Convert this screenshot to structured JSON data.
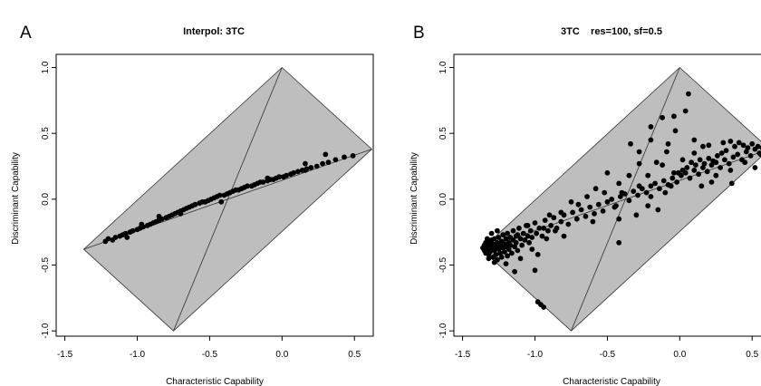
{
  "chart_data": [
    {
      "type": "scatter",
      "panel_label": "A",
      "title": "Interpol: 3TC",
      "xlabel": "Characteristic Capability",
      "ylabel": "Discriminant Capability",
      "xlim": [
        -1.56,
        0.63
      ],
      "ylim": [
        -1.04,
        1.1
      ],
      "xticks": [
        -1.5,
        -1.0,
        -0.5,
        0.0,
        0.5
      ],
      "xtick_labels": [
        "-1.5",
        "-1.0",
        "-0.5",
        "0.0",
        "0.5"
      ],
      "yticks": [
        -1.0,
        -0.5,
        0.0,
        0.5,
        1.0
      ],
      "ytick_labels": [
        "-1.0",
        "-0.5",
        "0.0",
        "0.5",
        "1.0"
      ],
      "grid": false,
      "region_polygon": [
        [
          0.0,
          1.0
        ],
        [
          0.62,
          0.38
        ],
        [
          -0.75,
          -1.0
        ],
        [
          -1.37,
          -0.38
        ]
      ],
      "region_diagonals": [
        [
          [
            0.0,
            1.0
          ],
          [
            -0.75,
            -1.0
          ]
        ],
        [
          [
            -1.37,
            -0.38
          ],
          [
            0.62,
            0.38
          ]
        ]
      ],
      "colors": {
        "region": "#bebebe",
        "points": "#000000"
      },
      "points": [
        [
          -1.22,
          -0.32
        ],
        [
          -1.2,
          -0.3
        ],
        [
          -1.17,
          -0.31
        ],
        [
          -1.15,
          -0.29
        ],
        [
          -1.12,
          -0.28
        ],
        [
          -1.1,
          -0.27
        ],
        [
          -1.08,
          -0.26
        ],
        [
          -1.05,
          -0.25
        ],
        [
          -1.03,
          -0.24
        ],
        [
          -1.0,
          -0.23
        ],
        [
          -0.98,
          -0.22
        ],
        [
          -0.96,
          -0.21
        ],
        [
          -0.93,
          -0.2
        ],
        [
          -0.91,
          -0.19
        ],
        [
          -0.89,
          -0.18
        ],
        [
          -0.87,
          -0.17
        ],
        [
          -0.85,
          -0.16
        ],
        [
          -0.83,
          -0.15
        ],
        [
          -0.8,
          -0.14
        ],
        [
          -0.78,
          -0.13
        ],
        [
          -0.76,
          -0.12
        ],
        [
          -0.74,
          -0.11
        ],
        [
          -0.72,
          -0.1
        ],
        [
          -0.7,
          -0.09
        ],
        [
          -0.68,
          -0.08
        ],
        [
          -0.66,
          -0.07
        ],
        [
          -0.64,
          -0.06
        ],
        [
          -0.62,
          -0.05
        ],
        [
          -0.6,
          -0.04
        ],
        [
          -0.57,
          -0.03
        ],
        [
          -0.55,
          -0.02
        ],
        [
          -0.53,
          -0.02
        ],
        [
          -0.51,
          -0.01
        ],
        [
          -0.49,
          0.0
        ],
        [
          -0.47,
          0.01
        ],
        [
          -0.45,
          0.02
        ],
        [
          -0.43,
          0.03
        ],
        [
          -0.4,
          0.03
        ],
        [
          -0.38,
          0.04
        ],
        [
          -0.36,
          0.05
        ],
        [
          -0.34,
          0.06
        ],
        [
          -0.32,
          0.07
        ],
        [
          -0.3,
          0.07
        ],
        [
          -0.28,
          0.08
        ],
        [
          -0.26,
          0.09
        ],
        [
          -0.24,
          0.1
        ],
        [
          -0.21,
          0.1
        ],
        [
          -0.19,
          0.11
        ],
        [
          -0.17,
          0.12
        ],
        [
          -0.15,
          0.13
        ],
        [
          -0.13,
          0.13
        ],
        [
          -0.1,
          0.14
        ],
        [
          -0.08,
          0.15
        ],
        [
          -0.06,
          0.15
        ],
        [
          -0.04,
          0.16
        ],
        [
          -0.02,
          0.17
        ],
        [
          0.01,
          0.17
        ],
        [
          0.03,
          0.18
        ],
        [
          0.06,
          0.19
        ],
        [
          0.08,
          0.2
        ],
        [
          0.11,
          0.21
        ],
        [
          0.14,
          0.22
        ],
        [
          0.17,
          0.23
        ],
        [
          0.2,
          0.24
        ],
        [
          0.24,
          0.25
        ],
        [
          0.28,
          0.27
        ],
        [
          0.32,
          0.28
        ],
        [
          0.37,
          0.3
        ],
        [
          0.43,
          0.32
        ],
        [
          0.49,
          0.33
        ],
        [
          0.16,
          0.22
        ],
        [
          -0.1,
          0.16
        ],
        [
          0.3,
          0.34
        ],
        [
          0.16,
          0.27
        ],
        [
          -0.42,
          -0.02
        ],
        [
          -0.7,
          -0.11
        ],
        [
          -0.97,
          -0.19
        ],
        [
          -1.07,
          -0.29
        ],
        [
          -0.85,
          -0.13
        ]
      ]
    },
    {
      "type": "scatter",
      "panel_label": "B",
      "title": "3TC    res=100, sf=0.5",
      "xlabel": "Characteristic Capability",
      "ylabel": "Discriminant Capability",
      "xlim": [
        -1.56,
        0.63
      ],
      "ylim": [
        -1.04,
        1.1
      ],
      "xticks": [
        -1.5,
        -1.0,
        -0.5,
        0.0,
        0.5
      ],
      "xtick_labels": [
        "-1.5",
        "-1.0",
        "-0.5",
        "0.0",
        "0.5"
      ],
      "yticks": [
        -1.0,
        -0.5,
        0.0,
        0.5,
        1.0
      ],
      "ytick_labels": [
        "-1.0",
        "-0.5",
        "0.0",
        "0.5",
        "1.0"
      ],
      "grid": false,
      "region_polygon": [
        [
          0.0,
          1.0
        ],
        [
          0.62,
          0.38
        ],
        [
          -0.75,
          -1.0
        ],
        [
          -1.37,
          -0.38
        ]
      ],
      "region_diagonals": [
        [
          [
            0.0,
            1.0
          ],
          [
            -0.75,
            -1.0
          ]
        ],
        [
          [
            -1.37,
            -0.38
          ],
          [
            0.62,
            0.38
          ]
        ]
      ],
      "colors": {
        "region": "#bebebe",
        "points": "#000000"
      },
      "points": [
        [
          -1.36,
          -0.37
        ],
        [
          -1.35,
          -0.35
        ],
        [
          -1.35,
          -0.39
        ],
        [
          -1.34,
          -0.33
        ],
        [
          -1.34,
          -0.41
        ],
        [
          -1.33,
          -0.36
        ],
        [
          -1.33,
          -0.38
        ],
        [
          -1.32,
          -0.32
        ],
        [
          -1.32,
          -0.42
        ],
        [
          -1.31,
          -0.35
        ],
        [
          -1.31,
          -0.4
        ],
        [
          -1.3,
          -0.31
        ],
        [
          -1.3,
          -0.37
        ],
        [
          -1.29,
          -0.44
        ],
        [
          -1.29,
          -0.34
        ],
        [
          -1.28,
          -0.39
        ],
        [
          -1.28,
          -0.3
        ],
        [
          -1.27,
          -0.36
        ],
        [
          -1.27,
          -0.42
        ],
        [
          -1.26,
          -0.33
        ],
        [
          -1.26,
          -0.46
        ],
        [
          -1.25,
          -0.38
        ],
        [
          -1.25,
          -0.29
        ],
        [
          -1.24,
          -0.35
        ],
        [
          -1.24,
          -0.41
        ],
        [
          -1.23,
          -0.32
        ],
        [
          -1.23,
          -0.44
        ],
        [
          -1.22,
          -0.37
        ],
        [
          -1.22,
          -0.27
        ],
        [
          -1.21,
          -0.34
        ],
        [
          -1.21,
          -0.4
        ],
        [
          -1.2,
          -0.3
        ],
        [
          -1.2,
          -0.36
        ],
        [
          -1.19,
          -0.43
        ],
        [
          -1.19,
          -0.26
        ],
        [
          -1.18,
          -0.33
        ],
        [
          -1.18,
          -0.38
        ],
        [
          -1.17,
          -0.29
        ],
        [
          -1.17,
          -0.35
        ],
        [
          -1.16,
          -0.41
        ],
        [
          -1.15,
          -0.31
        ],
        [
          -1.15,
          -0.24
        ],
        [
          -1.14,
          -0.36
        ],
        [
          -1.13,
          -0.28
        ],
        [
          -1.13,
          -0.33
        ],
        [
          -1.12,
          -0.39
        ],
        [
          -1.11,
          -0.22
        ],
        [
          -1.1,
          -0.3
        ],
        [
          -1.09,
          -0.35
        ],
        [
          -1.08,
          -0.26
        ],
        [
          -1.07,
          -0.31
        ],
        [
          -1.06,
          -0.2
        ],
        [
          -1.05,
          -0.28
        ],
        [
          -1.04,
          -0.33
        ],
        [
          -1.03,
          -0.24
        ],
        [
          -1.02,
          -0.29
        ],
        [
          -1.0,
          -0.18
        ],
        [
          -0.99,
          -0.26
        ],
        [
          -0.97,
          -0.22
        ],
        [
          -0.95,
          -0.28
        ],
        [
          -0.93,
          -0.16
        ],
        [
          -0.91,
          -0.24
        ],
        [
          -0.89,
          -0.2
        ],
        [
          -0.87,
          -0.14
        ],
        [
          -0.85,
          -0.22
        ],
        [
          -0.82,
          -0.17
        ],
        [
          -0.8,
          -0.12
        ],
        [
          -0.77,
          -0.19
        ],
        [
          -0.74,
          -0.1
        ],
        [
          -0.71,
          -0.15
        ],
        [
          -0.68,
          -0.08
        ],
        [
          -0.65,
          -0.13
        ],
        [
          -0.62,
          -0.06
        ],
        [
          -0.59,
          -0.11
        ],
        [
          -0.56,
          -0.04
        ],
        [
          -0.53,
          -0.09
        ],
        [
          -0.5,
          -0.02
        ],
        [
          -0.47,
          0.0
        ],
        [
          -0.44,
          -0.05
        ],
        [
          -0.41,
          0.02
        ],
        [
          -0.38,
          0.04
        ],
        [
          -0.35,
          -0.01
        ],
        [
          -0.32,
          0.06
        ],
        [
          -0.29,
          0.03
        ],
        [
          -0.26,
          0.08
        ],
        [
          -0.23,
          0.05
        ],
        [
          -0.2,
          0.1
        ],
        [
          -0.17,
          0.12
        ],
        [
          -0.14,
          0.08
        ],
        [
          -0.11,
          0.14
        ],
        [
          -0.08,
          0.11
        ],
        [
          -0.05,
          0.16
        ],
        [
          -0.02,
          0.13
        ],
        [
          0.01,
          0.18
        ],
        [
          0.04,
          0.2
        ],
        [
          0.07,
          0.16
        ],
        [
          0.1,
          0.22
        ],
        [
          0.13,
          0.19
        ],
        [
          0.16,
          0.24
        ],
        [
          0.19,
          0.21
        ],
        [
          0.22,
          0.26
        ],
        [
          0.25,
          0.28
        ],
        [
          0.28,
          0.24
        ],
        [
          0.31,
          0.3
        ],
        [
          0.34,
          0.27
        ],
        [
          0.37,
          0.32
        ],
        [
          0.4,
          0.34
        ],
        [
          0.43,
          0.3
        ],
        [
          0.46,
          0.36
        ],
        [
          0.49,
          0.33
        ],
        [
          0.52,
          0.38
        ],
        [
          0.55,
          0.35
        ],
        [
          0.57,
          0.39
        ],
        [
          0.59,
          0.36
        ],
        [
          0.6,
          0.38
        ],
        [
          0.58,
          0.41
        ],
        [
          0.56,
          0.34
        ],
        [
          0.54,
          0.4
        ],
        [
          0.5,
          0.42
        ],
        [
          0.47,
          0.39
        ],
        [
          0.44,
          0.41
        ],
        [
          0.41,
          0.43
        ],
        [
          0.38,
          0.4
        ],
        [
          0.35,
          0.44
        ],
        [
          0.32,
          0.37
        ],
        [
          0.29,
          0.35
        ],
        [
          0.26,
          0.33
        ],
        [
          0.23,
          0.29
        ],
        [
          0.2,
          0.31
        ],
        [
          0.17,
          0.27
        ],
        [
          0.14,
          0.3
        ],
        [
          0.11,
          0.26
        ],
        [
          0.08,
          0.28
        ],
        [
          0.05,
          0.24
        ],
        [
          0.02,
          0.22
        ],
        [
          -0.01,
          0.2
        ],
        [
          -0.04,
          0.2
        ],
        [
          0.3,
          0.43
        ],
        [
          0.2,
          0.41
        ],
        [
          0.1,
          0.35
        ],
        [
          0.02,
          0.3
        ],
        [
          -0.12,
          0.26
        ],
        [
          -0.22,
          0.18
        ],
        [
          -0.03,
          0.52
        ],
        [
          -0.12,
          0.62
        ],
        [
          -0.2,
          0.55
        ],
        [
          -0.28,
          0.36
        ],
        [
          -0.34,
          0.42
        ],
        [
          -0.28,
          0.27
        ],
        [
          -0.16,
          0.28
        ],
        [
          -0.09,
          0.36
        ],
        [
          0.06,
          0.8
        ],
        [
          0.04,
          0.67
        ],
        [
          -0.04,
          0.63
        ],
        [
          -0.08,
          0.42
        ],
        [
          -0.2,
          0.45
        ],
        [
          -0.35,
          0.18
        ],
        [
          -0.42,
          0.12
        ],
        [
          -0.5,
          0.2
        ],
        [
          -0.52,
          0.05
        ],
        [
          -0.58,
          0.08
        ],
        [
          -0.64,
          0.02
        ],
        [
          -0.7,
          -0.04
        ],
        [
          -0.75,
          -0.02
        ],
        [
          -0.82,
          -0.1
        ],
        [
          -0.9,
          -0.12
        ],
        [
          -0.92,
          -0.3
        ],
        [
          -1.02,
          -0.38
        ],
        [
          -1.1,
          -0.45
        ],
        [
          -1.14,
          -0.55
        ],
        [
          -1.0,
          -0.54
        ],
        [
          -0.98,
          -0.42
        ],
        [
          -1.2,
          -0.49
        ],
        [
          -1.12,
          -0.27
        ],
        [
          -1.05,
          -0.2
        ],
        [
          -0.94,
          -0.22
        ],
        [
          -0.45,
          -0.06
        ],
        [
          -0.42,
          -0.15
        ],
        [
          -0.6,
          -0.17
        ],
        [
          -0.8,
          -0.28
        ],
        [
          -0.86,
          -0.24
        ],
        [
          -0.4,
          0.05
        ],
        [
          -0.22,
          -0.05
        ],
        [
          -0.2,
          0.02
        ],
        [
          -0.28,
          0.1
        ],
        [
          -0.1,
          0.05
        ],
        [
          -0.06,
          0.1
        ],
        [
          -0.42,
          -0.33
        ],
        [
          -0.3,
          -0.12
        ],
        [
          -0.15,
          -0.08
        ],
        [
          -0.96,
          -0.8
        ],
        [
          -0.94,
          -0.82
        ],
        [
          -0.98,
          -0.78
        ],
        [
          -1.28,
          -0.48
        ],
        [
          -1.32,
          -0.45
        ],
        [
          -1.33,
          -0.3
        ],
        [
          -1.3,
          -0.26
        ],
        [
          -1.26,
          -0.24
        ],
        [
          0.1,
          0.45
        ],
        [
          0.16,
          0.4
        ],
        [
          0.35,
          0.22
        ],
        [
          0.45,
          0.28
        ],
        [
          0.52,
          0.24
        ],
        [
          0.22,
          0.13
        ],
        [
          0.15,
          0.1
        ],
        [
          0.25,
          0.18
        ],
        [
          0.36,
          0.12
        ]
      ]
    }
  ]
}
